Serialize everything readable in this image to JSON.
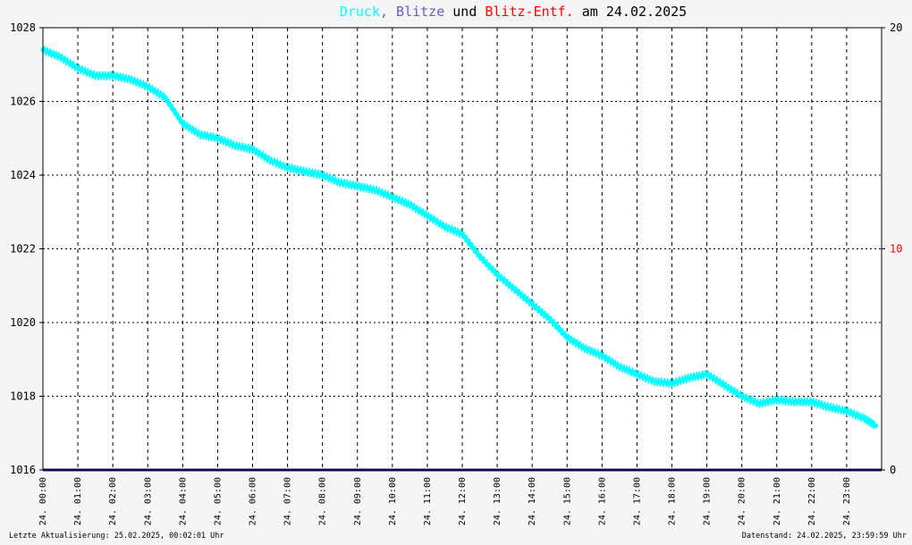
{
  "title": {
    "druck": "Druck",
    "comma": ",",
    "blitze": "Blitze",
    "und": "und",
    "entf": "Blitz-Entf.",
    "am": "am",
    "date": "24.02.2025"
  },
  "footer": {
    "left": "Letzte Aktualisierung: 25.02.2025, 00:02:01 Uhr",
    "right": "Datenstand: 24.02.2025, 23:59:59 Uhr"
  },
  "colors": {
    "background": "#f5f5f5",
    "plot_background": "#ffffff",
    "druck": "#00ffff",
    "blitze": "#6a5acd",
    "entf": "#ff0000",
    "axis": "#000000",
    "baseline": "#1a1a80"
  },
  "chart_data": {
    "type": "line",
    "grid": true,
    "x_label_format": "DD. HH:MM",
    "xlabels": [
      "24. 00:00",
      "24. 01:00",
      "24. 02:00",
      "24. 03:00",
      "24. 04:00",
      "24. 05:00",
      "24. 06:00",
      "24. 07:00",
      "24. 08:00",
      "24. 09:00",
      "24. 10:00",
      "24. 11:00",
      "24. 12:00",
      "24. 13:00",
      "24. 14:00",
      "24. 15:00",
      "24. 16:00",
      "24. 17:00",
      "24. 18:00",
      "24. 19:00",
      "24. 20:00",
      "24. 21:00",
      "24. 22:00",
      "24. 23:00"
    ],
    "xlim": [
      0,
      24
    ],
    "y_left": {
      "ylim": [
        1016,
        1028
      ],
      "ticks": [
        1016,
        1018,
        1020,
        1022,
        1024,
        1026,
        1028
      ]
    },
    "y_right": {
      "ylim": [
        0,
        20
      ],
      "ticks": [
        0,
        10,
        20
      ]
    },
    "series": [
      {
        "name": "Druck",
        "axis": "left",
        "x": [
          0,
          0.5,
          1,
          1.5,
          2,
          2.5,
          3,
          3.5,
          4,
          4.5,
          5,
          5.5,
          6,
          6.5,
          7,
          7.5,
          8,
          8.5,
          9,
          9.5,
          10,
          10.5,
          11,
          11.5,
          12,
          12.5,
          13,
          13.5,
          14,
          14.5,
          15,
          15.5,
          16,
          16.5,
          17,
          17.5,
          18,
          18.5,
          19,
          19.5,
          20,
          20.5,
          21,
          21.5,
          22,
          22.5,
          23,
          23.5,
          23.83
        ],
        "values": [
          1027.4,
          1027.2,
          1026.9,
          1026.7,
          1026.7,
          1026.6,
          1026.4,
          1026.1,
          1025.4,
          1025.1,
          1025.0,
          1024.8,
          1024.7,
          1024.4,
          1024.2,
          1024.1,
          1024.0,
          1023.8,
          1023.7,
          1023.6,
          1023.4,
          1023.2,
          1022.9,
          1022.6,
          1022.4,
          1021.8,
          1021.3,
          1020.9,
          1020.5,
          1020.1,
          1019.6,
          1019.3,
          1019.1,
          1018.8,
          1018.6,
          1018.4,
          1018.35,
          1018.5,
          1018.6,
          1018.3,
          1018.0,
          1017.8,
          1017.9,
          1017.85,
          1017.85,
          1017.7,
          1017.6,
          1017.4,
          1017.2
        ]
      },
      {
        "name": "Blitze",
        "axis": "right",
        "x": [
          0,
          24
        ],
        "values": [
          0,
          0
        ]
      }
    ]
  }
}
